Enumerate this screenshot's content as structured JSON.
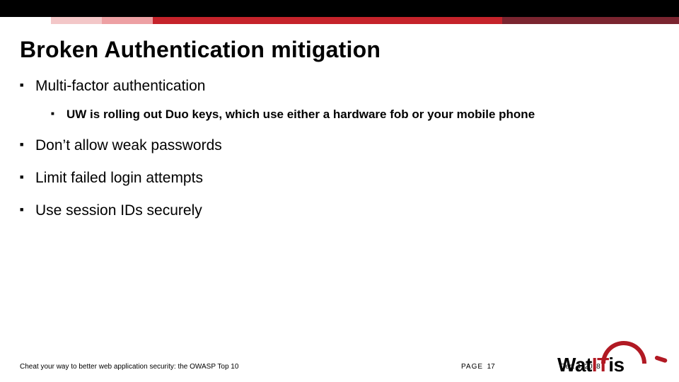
{
  "colors": {
    "top_bar": "#000000",
    "stripe_segments": [
      "#ffffff",
      "#f3c7c8",
      "#eda0a3",
      "#c5232b",
      "#7a2530"
    ],
    "accent_red": "#b11923",
    "text": "#000000",
    "background": "#ffffff"
  },
  "title": "Broken Authentication mitigation",
  "bullets": [
    {
      "text": "Multi-factor authentication",
      "sub": [
        "UW is rolling out Duo keys, which use either a hardware fob or your mobile phone"
      ]
    },
    {
      "text": "Don’t allow weak passwords"
    },
    {
      "text": "Limit failed login attempts"
    },
    {
      "text": "Use session IDs securely"
    }
  ],
  "footer": {
    "left": "Cheat your way to better web application security: the OWASP Top 10",
    "page_label": "PAGE",
    "page_number": "17",
    "date": "Dec. 4, 2018"
  },
  "logo": {
    "wat": "Wat",
    "it": "IT",
    "is": "is"
  }
}
